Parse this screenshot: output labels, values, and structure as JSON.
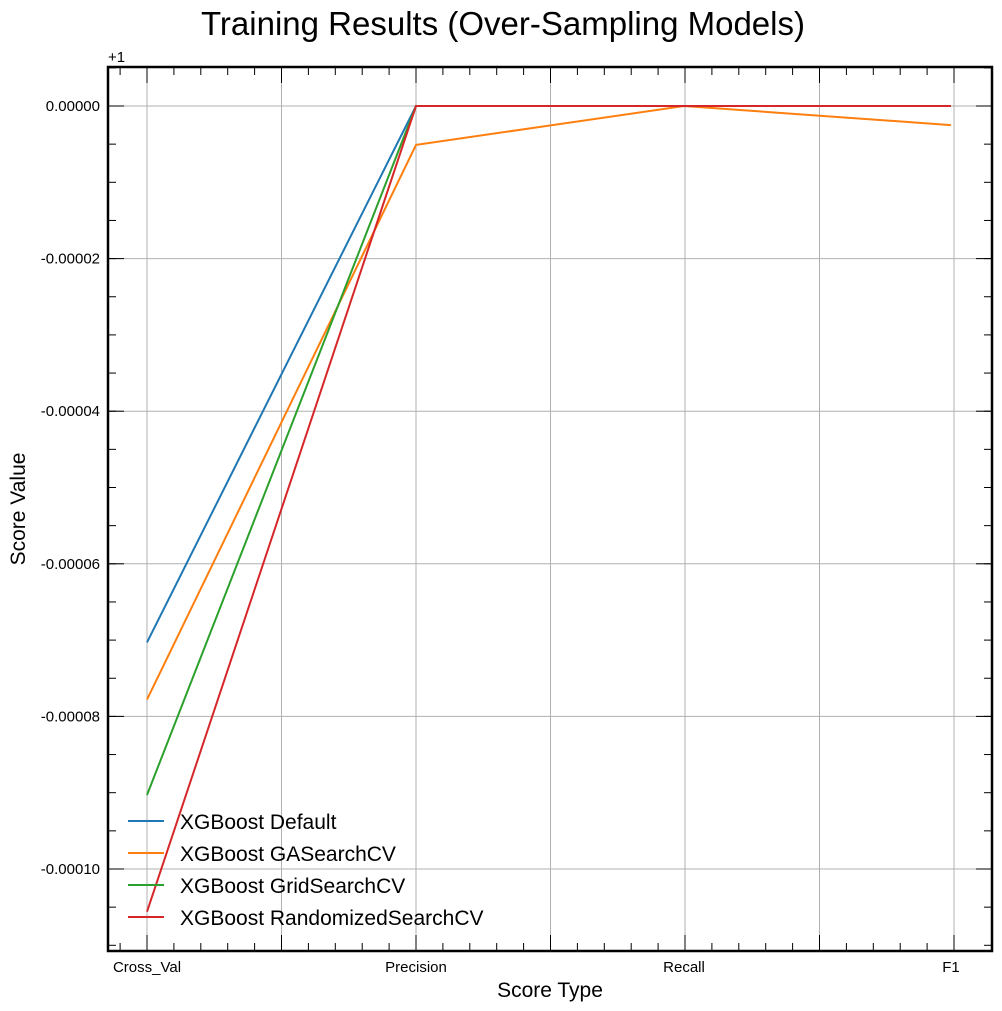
{
  "chart_data": {
    "type": "line",
    "title": "Training Results (Over-Sampling Models)",
    "xlabel": "Score Type",
    "ylabel": "Score Value",
    "y_offset_label": "+1",
    "categories": [
      "Cross_Val",
      "Precision",
      "Recall",
      "F1"
    ],
    "y_offset": 1,
    "ylim": [
      -0.000111,
      5.2e-06
    ],
    "yticks": [
      0.0,
      -2e-05,
      -4e-05,
      -6e-05,
      -8e-05,
      -0.0001
    ],
    "ytick_labels": [
      "0.00000",
      "-0.00002",
      "-0.00004",
      "-0.00006",
      "-0.00008",
      "-0.00010"
    ],
    "grid": true,
    "legend_position": "lower-left",
    "series": [
      {
        "name": "XGBoost Default",
        "color": "#1f77b4",
        "values": [
          -7.03e-05,
          0.0,
          0.0,
          0.0
        ]
      },
      {
        "name": "XGBoost GASearchCV",
        "color": "#ff7f0e",
        "values": [
          -7.78e-05,
          -5.1e-06,
          0.0,
          -2.5e-06
        ]
      },
      {
        "name": "XGBoost GridSearchCV",
        "color": "#2ca02c",
        "values": [
          -9.03e-05,
          0.0,
          0.0,
          0.0
        ]
      },
      {
        "name": "XGBoost RandomizedSearchCV",
        "color": "#d62728",
        "values": [
          -0.0001056,
          0.0,
          0.0,
          0.0
        ]
      }
    ]
  }
}
